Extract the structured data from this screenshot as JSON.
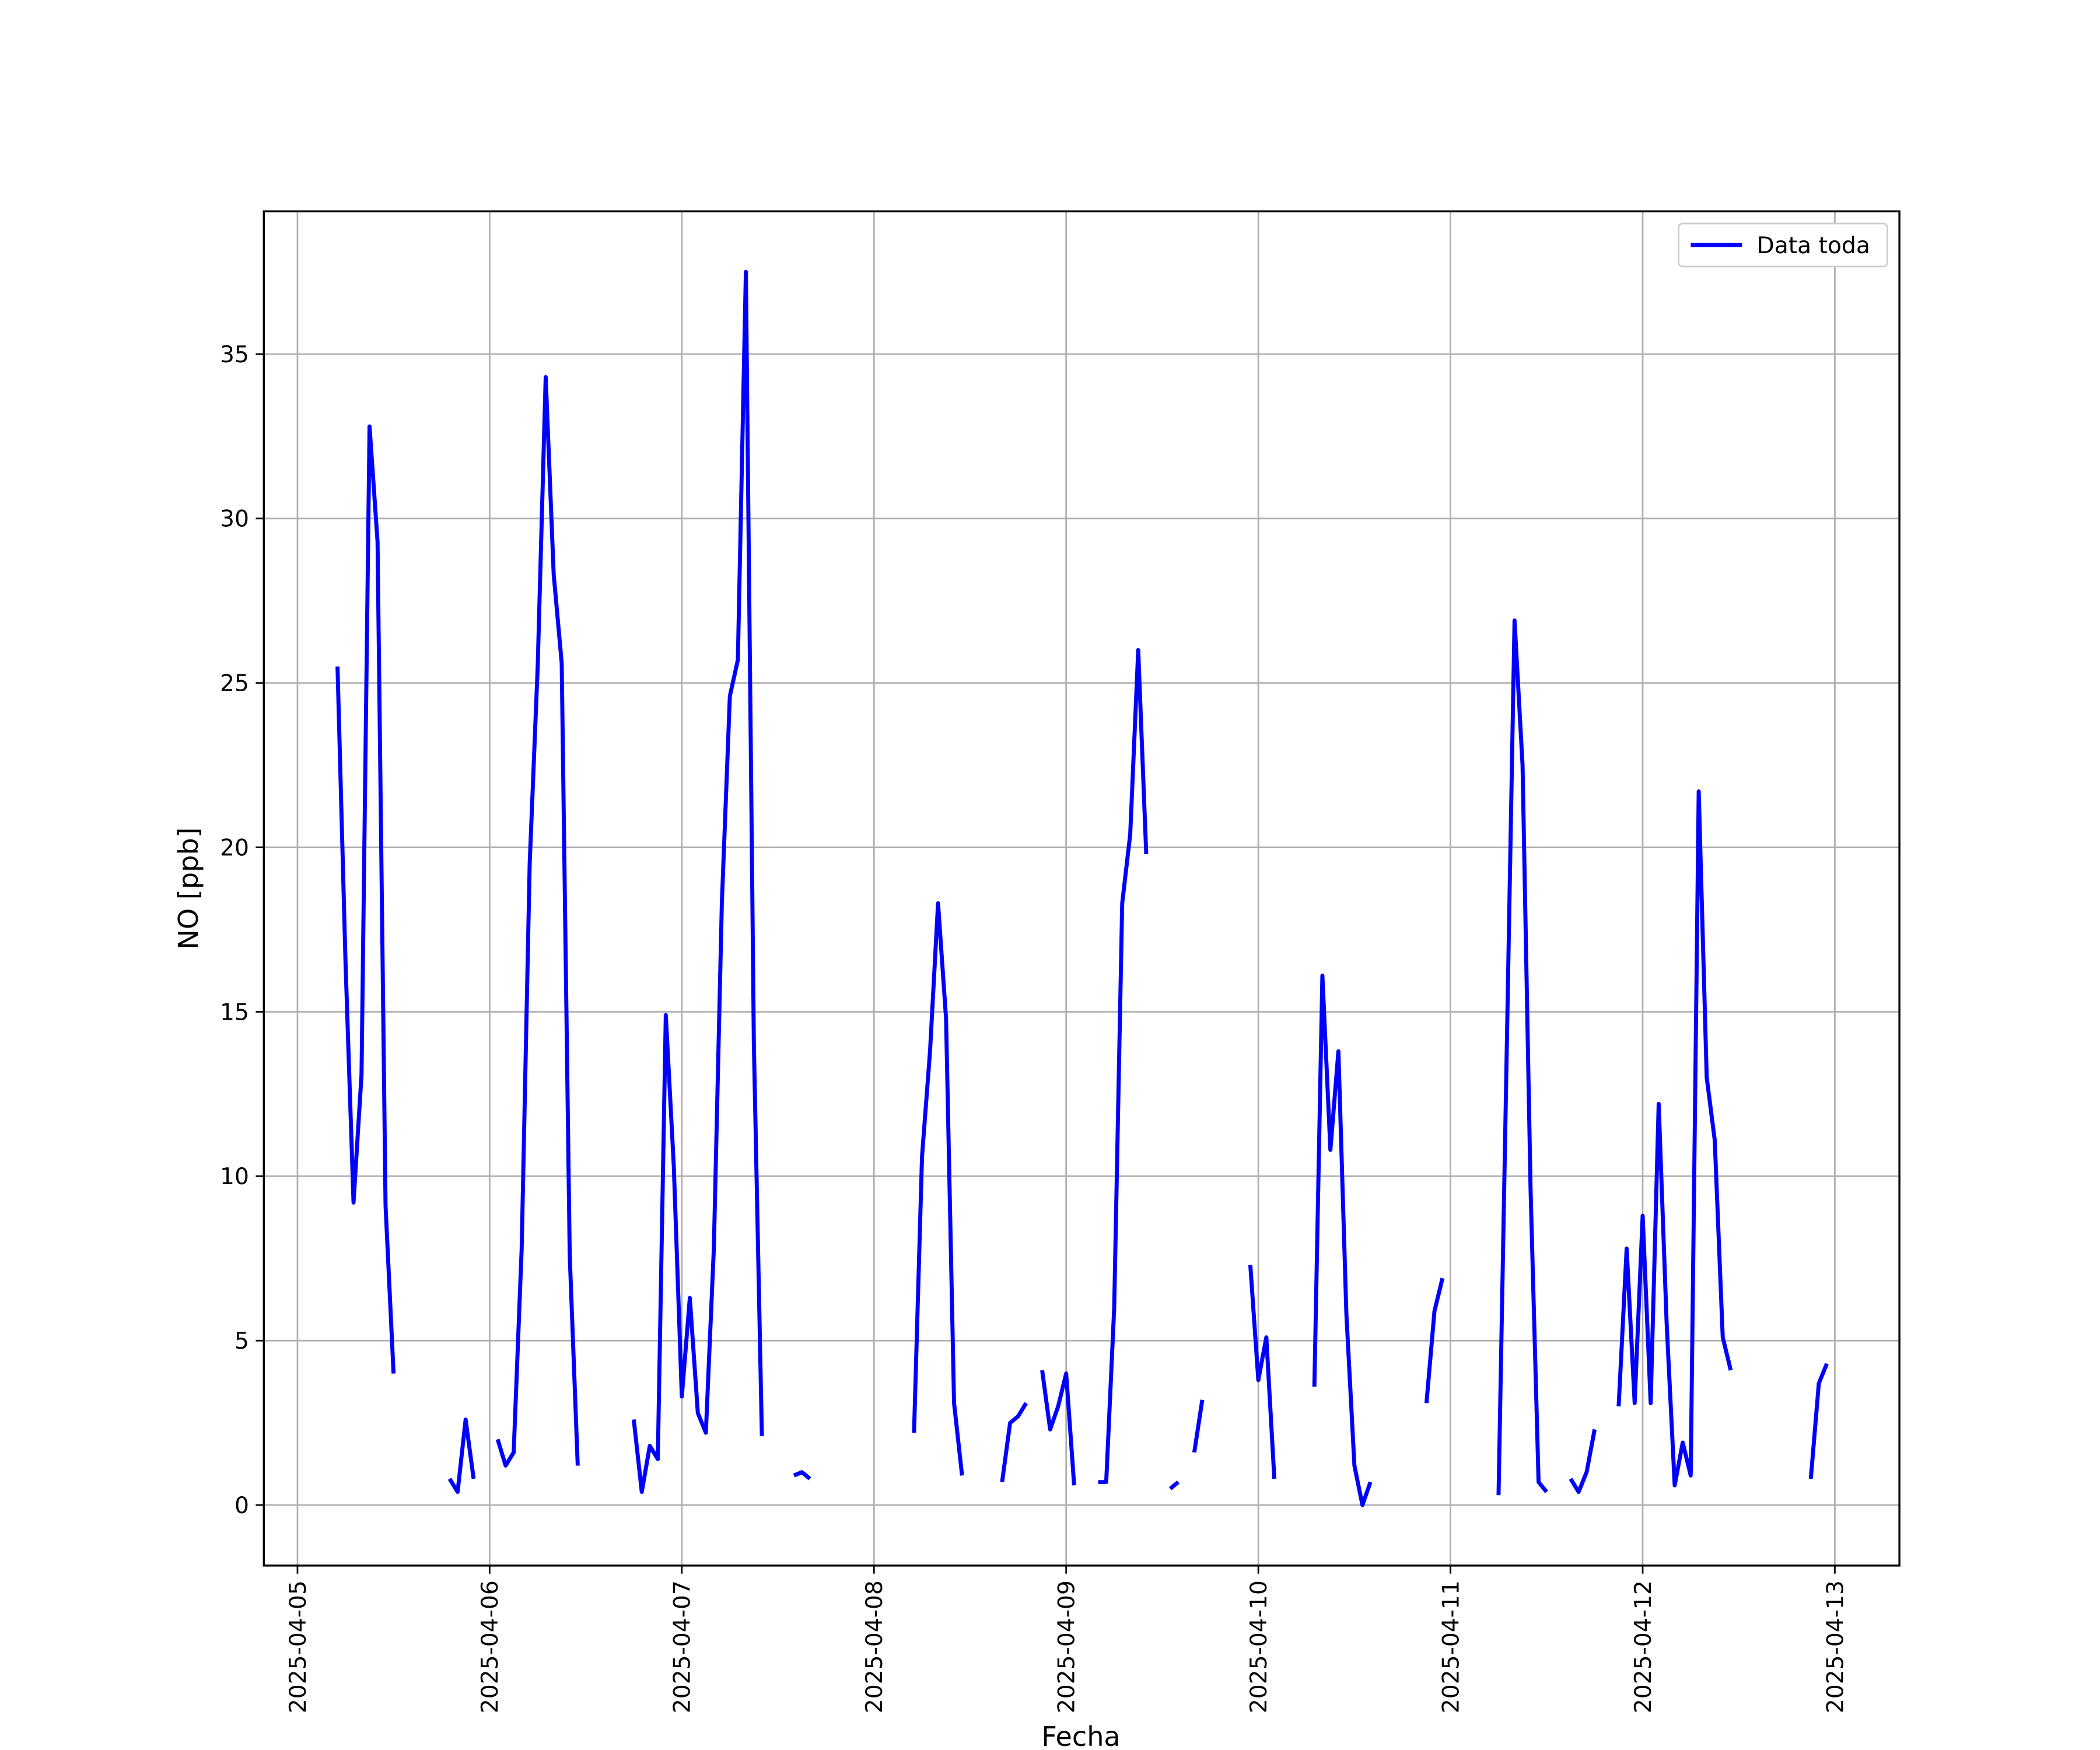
{
  "chart_data": {
    "type": "line",
    "xlabel": "Fecha",
    "ylabel": "NO [ppb]",
    "grid": true,
    "legend": "upper right",
    "xlim": [
      "2025-04-04T19:48",
      "2025-04-13T08:04"
    ],
    "xticks": [
      "2025-04-05",
      "2025-04-06",
      "2025-04-07",
      "2025-04-08",
      "2025-04-09",
      "2025-04-10",
      "2025-04-11",
      "2025-04-12",
      "2025-04-13"
    ],
    "ylim": [
      -1.84,
      39.34
    ],
    "yticks": [
      0,
      5,
      10,
      15,
      20,
      25,
      30,
      35
    ],
    "x": [
      "2025-04-05T05:00",
      "2025-04-05T06:00",
      "2025-04-05T07:00",
      "2025-04-05T08:00",
      "2025-04-05T09:00",
      "2025-04-05T10:00",
      "2025-04-05T11:00",
      "2025-04-05T12:00",
      "2025-04-05T15:00",
      "2025-04-05T19:00",
      "2025-04-05T20:00",
      "2025-04-05T21:00",
      "2025-04-05T22:00",
      "2025-04-05T23:00",
      "2025-04-06T01:00",
      "2025-04-06T02:00",
      "2025-04-06T03:00",
      "2025-04-06T04:00",
      "2025-04-06T05:00",
      "2025-04-06T06:00",
      "2025-04-06T07:00",
      "2025-04-06T08:00",
      "2025-04-06T09:00",
      "2025-04-06T10:00",
      "2025-04-06T11:00",
      "2025-04-06T14:00",
      "2025-04-06T18:00",
      "2025-04-06T19:00",
      "2025-04-06T20:00",
      "2025-04-06T21:00",
      "2025-04-06T22:00",
      "2025-04-06T23:00",
      "2025-04-07T00:00",
      "2025-04-07T01:00",
      "2025-04-07T02:00",
      "2025-04-07T03:00",
      "2025-04-07T04:00",
      "2025-04-07T05:00",
      "2025-04-07T06:00",
      "2025-04-07T07:00",
      "2025-04-07T08:00",
      "2025-04-07T09:00",
      "2025-04-07T10:00",
      "2025-04-07T12:00",
      "2025-04-07T14:00",
      "2025-04-07T15:00",
      "2025-04-07T16:00",
      "2025-04-07T17:00",
      "2025-04-08T05:00",
      "2025-04-08T06:00",
      "2025-04-08T07:00",
      "2025-04-08T08:00",
      "2025-04-08T09:00",
      "2025-04-08T10:00",
      "2025-04-08T11:00",
      "2025-04-08T12:00",
      "2025-04-08T16:00",
      "2025-04-08T17:00",
      "2025-04-08T18:00",
      "2025-04-08T19:00",
      "2025-04-08T20:00",
      "2025-04-08T21:00",
      "2025-04-08T22:00",
      "2025-04-08T23:00",
      "2025-04-09T00:00",
      "2025-04-09T01:00",
      "2025-04-09T02:00",
      "2025-04-09T04:00",
      "2025-04-09T05:00",
      "2025-04-09T06:00",
      "2025-04-09T07:00",
      "2025-04-09T08:00",
      "2025-04-09T09:00",
      "2025-04-09T10:00",
      "2025-04-09T11:00",
      "2025-04-09T13:00",
      "2025-04-09T14:00",
      "2025-04-09T15:00",
      "2025-04-09T16:00",
      "2025-04-09T17:00",
      "2025-04-09T18:00",
      "2025-04-09T23:00",
      "2025-04-10T00:00",
      "2025-04-10T01:00",
      "2025-04-10T02:00",
      "2025-04-10T03:00",
      "2025-04-10T07:00",
      "2025-04-10T08:00",
      "2025-04-10T09:00",
      "2025-04-10T10:00",
      "2025-04-10T11:00",
      "2025-04-10T12:00",
      "2025-04-10T13:00",
      "2025-04-10T14:00",
      "2025-04-10T15:00",
      "2025-04-10T21:00",
      "2025-04-10T22:00",
      "2025-04-10T23:00",
      "2025-04-11T00:00",
      "2025-04-11T06:00",
      "2025-04-11T07:00",
      "2025-04-11T08:00",
      "2025-04-11T09:00",
      "2025-04-11T10:00",
      "2025-04-11T11:00",
      "2025-04-11T12:00",
      "2025-04-11T13:00",
      "2025-04-11T15:00",
      "2025-04-11T16:00",
      "2025-04-11T17:00",
      "2025-04-11T18:00",
      "2025-04-11T19:00",
      "2025-04-11T21:00",
      "2025-04-11T22:00",
      "2025-04-11T23:00",
      "2025-04-12T00:00",
      "2025-04-12T01:00",
      "2025-04-12T02:00",
      "2025-04-12T03:00",
      "2025-04-12T04:00",
      "2025-04-12T05:00",
      "2025-04-12T06:00",
      "2025-04-12T07:00",
      "2025-04-12T08:00",
      "2025-04-12T09:00",
      "2025-04-12T10:00",
      "2025-04-12T11:00",
      "2025-04-12T12:00",
      "2025-04-12T21:00",
      "2025-04-12T22:00",
      "2025-04-12T23:00"
    ],
    "series": [
      {
        "name": "Data toda",
        "color": "#0000ff",
        "values": [
          25.5,
          16.5,
          9.2,
          13.1,
          32.8,
          29.3,
          9.1,
          4.0,
          null,
          0.8,
          0.4,
          2.6,
          0.8,
          null,
          2.0,
          1.2,
          1.6,
          7.8,
          19.5,
          25.5,
          34.3,
          28.3,
          25.6,
          7.6,
          1.2,
          null,
          2.6,
          0.4,
          1.8,
          1.4,
          14.9,
          10.3,
          3.3,
          6.3,
          2.8,
          2.2,
          7.8,
          18.3,
          24.6,
          25.7,
          37.5,
          14.0,
          2.1,
          null,
          0.9,
          1.0,
          0.8,
          null,
          2.2,
          10.6,
          13.8,
          18.3,
          14.8,
          3.1,
          0.9,
          null,
          0.7,
          2.5,
          2.7,
          3.1,
          null,
          4.1,
          2.3,
          3.0,
          4.0,
          0.6,
          null,
          0.7,
          0.7,
          6.0,
          18.3,
          20.4,
          26.0,
          19.8,
          null,
          0.5,
          0.7,
          null,
          1.6,
          3.2,
          null,
          7.3,
          3.8,
          5.1,
          0.8,
          null,
          3.6,
          16.1,
          10.8,
          13.8,
          5.8,
          1.2,
          0.0,
          0.7,
          null,
          3.1,
          5.9,
          6.9,
          null,
          0.3,
          13.5,
          26.9,
          22.5,
          9.6,
          0.7,
          0.4,
          null,
          0.8,
          0.4,
          1.0,
          2.3,
          null,
          3.0,
          7.8,
          3.1,
          8.8,
          3.1,
          12.2,
          5.5,
          0.6,
          1.9,
          0.9,
          21.7,
          13.0,
          11.1,
          5.1,
          4.1,
          null,
          0.8,
          3.7,
          4.3
        ]
      }
    ]
  }
}
